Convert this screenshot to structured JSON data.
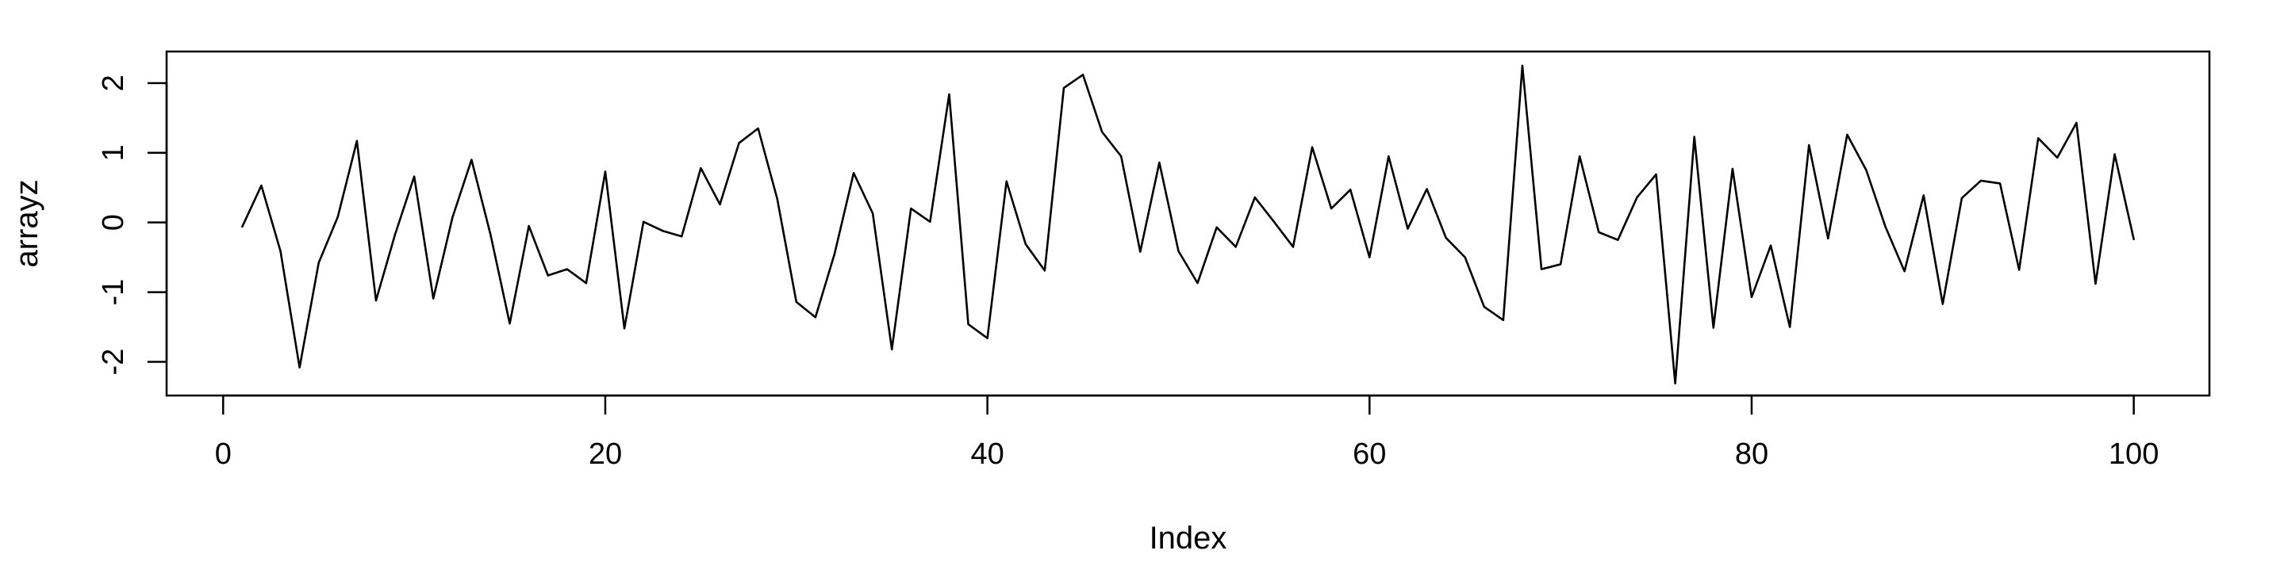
{
  "chart_data": {
    "type": "line",
    "xlabel": "Index",
    "ylabel": "arrayz",
    "xlim": [
      1,
      100
    ],
    "ylim": [
      -2.3,
      2.27
    ],
    "xticks": [
      0,
      20,
      40,
      60,
      80,
      100
    ],
    "yticks": [
      -2,
      -1,
      0,
      1,
      2
    ],
    "xtick_labels": [
      "0",
      "20",
      "40",
      "60",
      "80",
      "100"
    ],
    "ytick_labels": [
      "-2",
      "-1",
      "0",
      "1",
      "2"
    ],
    "grid": false,
    "line_color": "#000000",
    "series": [
      {
        "x": [
          1,
          2,
          3,
          4,
          5,
          6,
          7,
          8,
          9,
          10,
          11,
          12,
          13,
          14,
          15,
          16,
          17,
          18,
          19,
          20,
          21,
          22,
          23,
          24,
          25,
          26,
          27,
          28,
          29,
          30,
          31,
          32,
          33,
          34,
          35,
          36,
          37,
          38,
          39,
          40,
          41,
          42,
          43,
          44,
          45,
          46,
          47,
          48,
          49,
          50,
          51,
          52,
          53,
          54,
          55,
          56,
          57,
          58,
          59,
          60,
          61,
          62,
          63,
          64,
          65,
          66,
          67,
          68,
          69,
          70,
          71,
          72,
          73,
          74,
          75,
          76,
          77,
          78,
          79,
          80,
          81,
          82,
          83,
          84,
          85,
          86,
          87,
          88,
          89,
          90,
          91,
          92,
          93,
          94,
          95,
          96,
          97,
          98,
          99,
          100
        ],
        "values": [
          -0.06,
          0.53,
          -0.41,
          -2.08,
          -0.58,
          0.08,
          1.17,
          -1.12,
          -0.17,
          0.66,
          -1.09,
          0.07,
          0.9,
          -0.18,
          -1.45,
          -0.05,
          -0.76,
          -0.67,
          -0.87,
          0.73,
          -1.52,
          0.01,
          -0.12,
          -0.2,
          0.78,
          0.26,
          1.14,
          1.35,
          0.34,
          -1.14,
          -1.36,
          -0.45,
          0.71,
          0.13,
          -1.82,
          0.2,
          0.01,
          1.84,
          -1.46,
          -1.66,
          0.59,
          -0.31,
          -0.69,
          1.93,
          2.12,
          1.3,
          0.95,
          -0.42,
          0.86,
          -0.41,
          -0.87,
          -0.07,
          -0.35,
          0.36,
          0.01,
          -0.35,
          1.08,
          0.2,
          0.47,
          -0.5,
          0.95,
          -0.09,
          0.48,
          -0.22,
          -0.5,
          -1.21,
          -1.4,
          2.25,
          -0.67,
          -0.6,
          0.95,
          -0.14,
          -0.25,
          0.36,
          0.69,
          -2.31,
          1.23,
          -1.51,
          0.77,
          -1.07,
          -0.33,
          -1.5,
          1.11,
          -0.23,
          1.26,
          0.75,
          -0.06,
          -0.7,
          0.39,
          -1.17,
          0.35,
          0.6,
          0.56,
          -0.68,
          1.21,
          0.93,
          1.43,
          -0.88,
          0.98,
          -0.24
        ]
      }
    ]
  }
}
